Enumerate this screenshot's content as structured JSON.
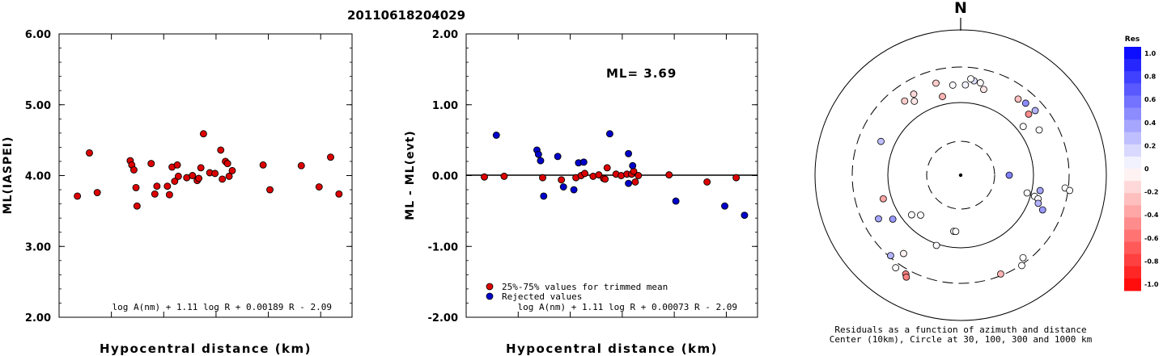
{
  "title": "20110618204029",
  "colors": {
    "accepted": "#dd0000",
    "rejected": "#0000cc",
    "axis": "#000000"
  },
  "chart_data": [
    {
      "type": "scatter",
      "id": "left",
      "xlabel": "Hypocentral distance (km)",
      "ylabel": "ML(IASPEI)",
      "ylim": [
        2.0,
        6.0
      ],
      "xlim": [
        0,
        560
      ],
      "xticks": [
        100,
        200,
        300,
        400,
        500
      ],
      "yticks": [
        "2.00",
        "3.00",
        "4.00",
        "5.00",
        "6.00"
      ],
      "formula": "log A(nm) + 1.11 log R + 0.00189 R - 2.09",
      "series": [
        {
          "marker_color": "#dd0000",
          "points": [
            [
              35,
              3.71
            ],
            [
              58,
              4.32
            ],
            [
              73,
              3.76
            ],
            [
              136,
              4.21
            ],
            [
              139,
              4.15
            ],
            [
              143,
              4.08
            ],
            [
              147,
              3.83
            ],
            [
              149,
              3.57
            ],
            [
              176,
              4.17
            ],
            [
              183,
              3.74
            ],
            [
              187,
              3.85
            ],
            [
              207,
              3.85
            ],
            [
              211,
              3.73
            ],
            [
              216,
              4.12
            ],
            [
              221,
              3.92
            ],
            [
              226,
              4.15
            ],
            [
              228,
              3.99
            ],
            [
              244,
              3.97
            ],
            [
              255,
              4.0
            ],
            [
              264,
              3.93
            ],
            [
              267,
              3.96
            ],
            [
              271,
              4.11
            ],
            [
              276,
              4.59
            ],
            [
              288,
              4.04
            ],
            [
              298,
              4.03
            ],
            [
              309,
              4.36
            ],
            [
              312,
              3.95
            ],
            [
              318,
              4.2
            ],
            [
              322,
              4.17
            ],
            [
              325,
              3.99
            ],
            [
              331,
              4.07
            ],
            [
              390,
              4.15
            ],
            [
              403,
              3.8
            ],
            [
              463,
              4.14
            ],
            [
              497,
              3.84
            ],
            [
              519,
              4.26
            ],
            [
              535,
              3.74
            ]
          ]
        }
      ]
    },
    {
      "type": "scatter",
      "id": "middle",
      "xlabel": "Hypocentral distance (km)",
      "ylabel": "ML - ML(evt)",
      "ylim": [
        -2.0,
        2.0
      ],
      "xlim": [
        0,
        560
      ],
      "xticks": [
        100,
        200,
        300,
        400,
        500
      ],
      "yticks": [
        "-2.00",
        "-1.00",
        "0.00",
        "1.00",
        "2.00"
      ],
      "annotation": "ML= 3.69",
      "formula": "log A(nm) + 1.11 log R + 0.00073 R - 2.09",
      "legend": [
        {
          "label": "25%-75% values for trimmed mean",
          "color": "#dd0000"
        },
        {
          "label": "Rejected values",
          "color": "#0000cc"
        }
      ],
      "reference_line": 0.0,
      "series": [
        {
          "name": "25%-75% values for trimmed mean",
          "marker_color": "#dd0000",
          "points": [
            [
              35,
              -0.02
            ],
            [
              73,
              -0.01
            ],
            [
              147,
              -0.03
            ],
            [
              183,
              -0.06
            ],
            [
              211,
              -0.03
            ],
            [
              221,
              0.0
            ],
            [
              228,
              0.03
            ],
            [
              244,
              -0.01
            ],
            [
              255,
              0.01
            ],
            [
              264,
              -0.04
            ],
            [
              267,
              -0.05
            ],
            [
              271,
              0.11
            ],
            [
              288,
              0.02
            ],
            [
              298,
              0.0
            ],
            [
              309,
              0.02
            ],
            [
              318,
              0.02
            ],
            [
              322,
              0.06
            ],
            [
              325,
              -0.09
            ],
            [
              331,
              0.0
            ],
            [
              390,
              0.01
            ],
            [
              463,
              -0.09
            ],
            [
              519,
              -0.03
            ]
          ]
        },
        {
          "name": "Rejected values",
          "marker_color": "#0000cc",
          "points": [
            [
              58,
              0.57
            ],
            [
              136,
              0.36
            ],
            [
              139,
              0.3
            ],
            [
              143,
              0.21
            ],
            [
              149,
              -0.29
            ],
            [
              176,
              0.27
            ],
            [
              187,
              -0.16
            ],
            [
              207,
              -0.2
            ],
            [
              216,
              0.18
            ],
            [
              226,
              0.19
            ],
            [
              276,
              0.59
            ],
            [
              312,
              0.31
            ],
            [
              312,
              -0.11
            ],
            [
              320,
              0.14
            ],
            [
              403,
              -0.36
            ],
            [
              497,
              -0.43
            ],
            [
              535,
              -0.56
            ]
          ]
        }
      ]
    },
    {
      "type": "scatter",
      "id": "polar",
      "north_label": "N",
      "caption_line1": "Residuals as a function of azimuth and distance",
      "caption_line2": "Center (10km), Circle at 30, 100, 300 and 1000 km",
      "colorbar": {
        "title": "Res",
        "labels": [
          "1.0",
          "0.8",
          "0.6",
          "0.4",
          "0.2",
          "0",
          "-0.2",
          "-0.4",
          "-0.6",
          "-0.8",
          "-1.0"
        ]
      },
      "stations": [
        [
          8,
          0.12
        ],
        [
          12,
          -0.02
        ],
        [
          3,
          0.05
        ],
        [
          6,
          0.01
        ],
        [
          15,
          -0.1
        ],
        [
          355,
          0.02
        ],
        [
          347,
          -0.3
        ],
        [
          345,
          -0.2
        ],
        [
          330,
          -0.15
        ],
        [
          328,
          -0.1
        ],
        [
          323,
          -0.2
        ],
        [
          37,
          -0.25
        ],
        [
          42,
          0.45
        ],
        [
          48,
          -0.45
        ],
        [
          49,
          0.3
        ],
        [
          52,
          0.0
        ],
        [
          60,
          0.0
        ],
        [
          293,
          0.25
        ],
        [
          253,
          -0.35
        ],
        [
          90,
          0.5
        ],
        [
          101,
          0.35
        ],
        [
          105,
          0.0
        ],
        [
          106,
          0.0
        ],
        [
          107,
          0.0
        ],
        [
          110,
          0.3
        ],
        [
          113,
          0.4
        ],
        [
          225,
          0.01
        ],
        [
          231,
          0.0
        ],
        [
          237,
          0.4
        ],
        [
          242,
          0.35
        ],
        [
          221,
          0.3
        ],
        [
          216,
          -0.05
        ],
        [
          199,
          0.02
        ],
        [
          215,
          0.0
        ],
        [
          209,
          -0.5
        ],
        [
          208,
          -0.5
        ],
        [
          143,
          0.0
        ],
        [
          146,
          0.0
        ],
        [
          158,
          -0.3
        ],
        [
          187,
          0.01
        ],
        [
          185,
          0.0
        ],
        [
          97,
          0.02
        ],
        [
          98,
          0.0
        ]
      ]
    }
  ]
}
